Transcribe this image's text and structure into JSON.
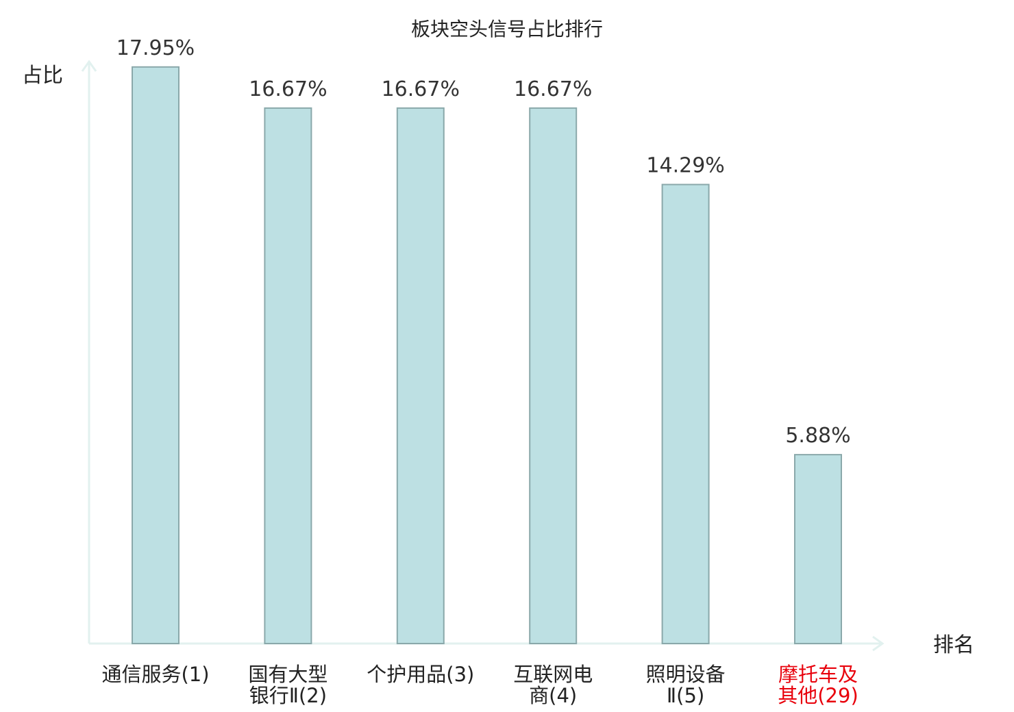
{
  "chart_data": {
    "type": "bar",
    "title": "板块空头信号占比排行",
    "ylabel": "占比",
    "xlabel": "排名",
    "ylim": [
      0,
      18.5
    ],
    "grid": false,
    "categories": [
      [
        "通信服务(1)"
      ],
      [
        "国有大型",
        "银行Ⅱ(2)"
      ],
      [
        "个护用品(3)"
      ],
      [
        "互联网电",
        "商(4)"
      ],
      [
        "照明设备",
        "Ⅱ(5)"
      ],
      [
        "摩托车及",
        "其他(29)"
      ]
    ],
    "values": [
      17.95,
      16.67,
      16.67,
      16.67,
      14.29,
      5.88
    ],
    "value_labels": [
      "17.95%",
      "16.67%",
      "16.67%",
      "16.67%",
      "14.29%",
      "5.88%"
    ],
    "highlight_index": 5,
    "colors": {
      "bar_fill": "#bde0e3",
      "bar_stroke": "#8aa8aa",
      "axis": "#e2f1ef",
      "text": "#222222",
      "highlight_text": "#e8000b"
    }
  }
}
